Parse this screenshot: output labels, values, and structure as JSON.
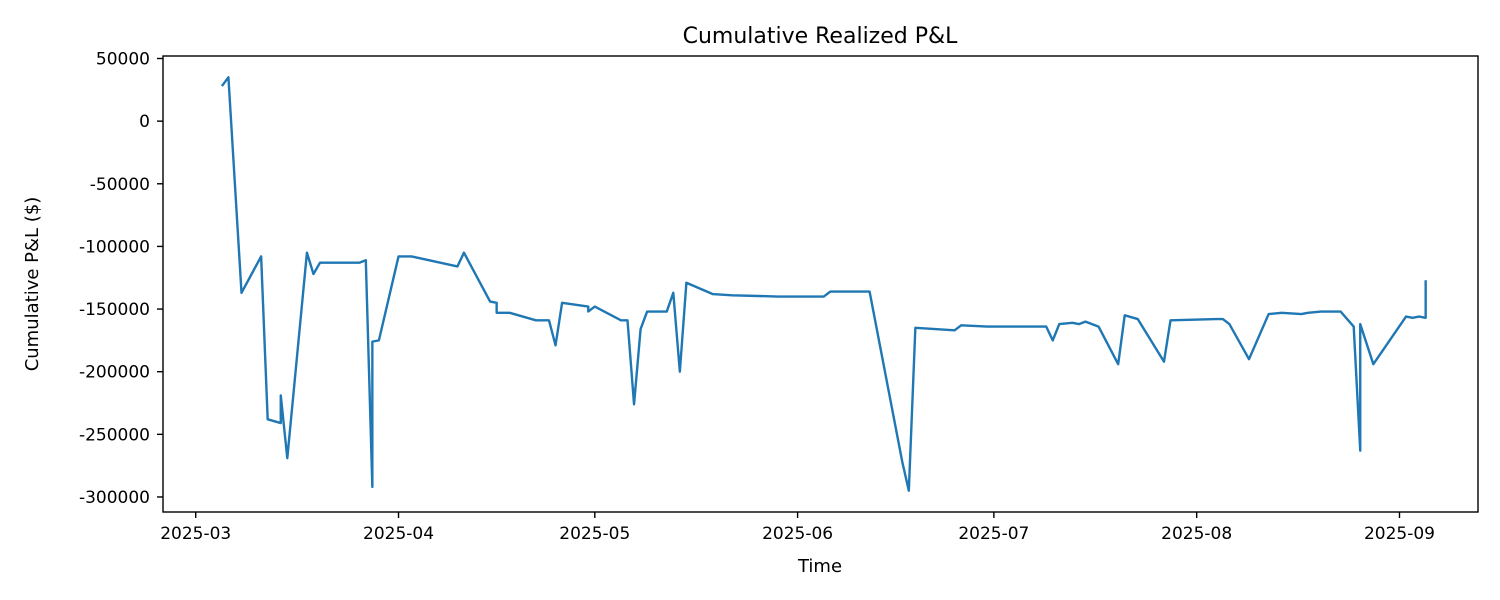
{
  "chart_data": {
    "type": "line",
    "title": "Cumulative Realized P&L",
    "xlabel": "Time",
    "ylabel": "Cumulative P&L ($)",
    "x_ticks": [
      "2025-03",
      "2025-04",
      "2025-05",
      "2025-06",
      "2025-07",
      "2025-08",
      "2025-09"
    ],
    "y_ticks": [
      50000,
      0,
      -50000,
      -100000,
      -150000,
      -200000,
      -250000,
      -300000
    ],
    "xlim": [
      "2025-02-24",
      "2025-09-13"
    ],
    "ylim": [
      -312000,
      52000
    ],
    "grid": false,
    "legend": "none",
    "colors": {
      "line": "#1f77b4"
    },
    "series": [
      {
        "x": [
          "2025-03-05",
          "2025-03-06",
          "2025-03-08",
          "2025-03-11",
          "2025-03-12",
          "2025-03-14",
          "2025-03-14",
          "2025-03-15",
          "2025-03-18",
          "2025-03-19",
          "2025-03-20",
          "2025-03-26",
          "2025-03-27",
          "2025-03-28",
          "2025-03-28",
          "2025-03-29",
          "2025-04-01",
          "2025-04-03",
          "2025-04-10",
          "2025-04-11",
          "2025-04-15",
          "2025-04-16",
          "2025-04-16",
          "2025-04-18",
          "2025-04-22",
          "2025-04-24",
          "2025-04-25",
          "2025-04-26",
          "2025-04-30",
          "2025-04-30",
          "2025-05-01",
          "2025-05-05",
          "2025-05-06",
          "2025-05-07",
          "2025-05-08",
          "2025-05-09",
          "2025-05-12",
          "2025-05-13",
          "2025-05-14",
          "2025-05-15",
          "2025-05-19",
          "2025-05-22",
          "2025-05-29",
          "2025-06-05",
          "2025-06-06",
          "2025-06-12",
          "2025-06-17",
          "2025-06-18",
          "2025-06-19",
          "2025-06-25",
          "2025-06-26",
          "2025-06-30",
          "2025-07-09",
          "2025-07-10",
          "2025-07-11",
          "2025-07-13",
          "2025-07-14",
          "2025-07-15",
          "2025-07-17",
          "2025-07-20",
          "2025-07-21",
          "2025-07-23",
          "2025-07-27",
          "2025-07-28",
          "2025-08-04",
          "2025-08-05",
          "2025-08-06",
          "2025-08-09",
          "2025-08-12",
          "2025-08-14",
          "2025-08-17",
          "2025-08-18",
          "2025-08-20",
          "2025-08-23",
          "2025-08-25",
          "2025-08-26",
          "2025-08-26",
          "2025-08-28",
          "2025-09-02",
          "2025-09-03",
          "2025-09-04",
          "2025-09-05",
          "2025-09-05"
        ],
        "y": [
          28000,
          35000,
          -137000,
          -108000,
          -238000,
          -241000,
          -219000,
          -269000,
          -105000,
          -122000,
          -113000,
          -113000,
          -111000,
          -292000,
          -176000,
          -175000,
          -108000,
          -108000,
          -116000,
          -105000,
          -144000,
          -145000,
          -153000,
          -153000,
          -159000,
          -159000,
          -179000,
          -145000,
          -148000,
          -152000,
          -148000,
          -159000,
          -159000,
          -226000,
          -166000,
          -152000,
          -152000,
          -137000,
          -200000,
          -129000,
          -138000,
          -139000,
          -140000,
          -140000,
          -136000,
          -136000,
          -272000,
          -295000,
          -165000,
          -167000,
          -163000,
          -164000,
          -164000,
          -175000,
          -162000,
          -161000,
          -162000,
          -160000,
          -164000,
          -194000,
          -155000,
          -158000,
          -192000,
          -159000,
          -158000,
          -158000,
          -162000,
          -190000,
          -154000,
          -153000,
          -154000,
          -153000,
          -152000,
          -152000,
          -164000,
          -263000,
          -162000,
          -194000,
          -156000,
          -157000,
          -156000,
          -157000,
          -127000
        ]
      }
    ]
  }
}
